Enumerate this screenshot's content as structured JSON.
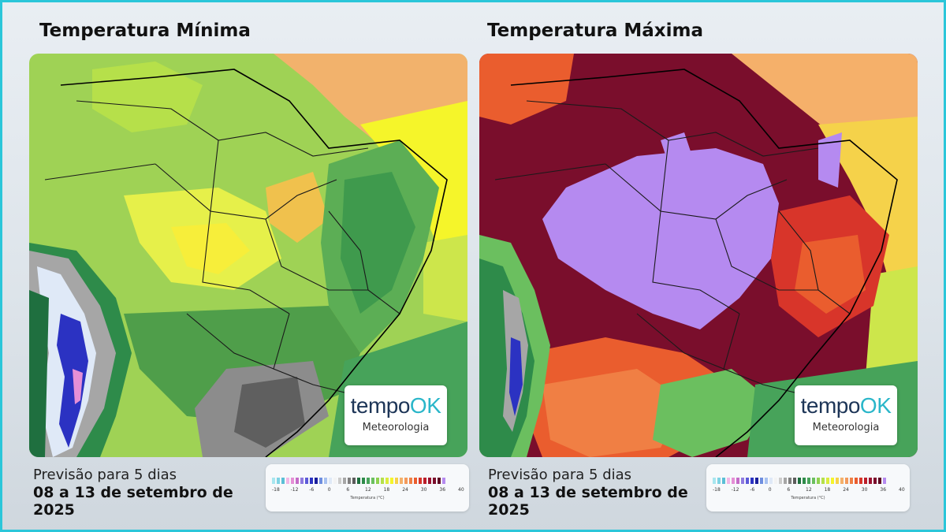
{
  "panels": [
    {
      "title": "Temperatura Mínima",
      "forecast_label": "Previsão para 5 dias",
      "forecast_date": "08 a 13 de setembro de 2025"
    },
    {
      "title": "Temperatura Máxima",
      "forecast_label": "Previsão para 5 dias",
      "forecast_date": "08 a 13 de setembro de 2025"
    }
  ],
  "logo": {
    "brand_main": "tempo",
    "brand_accent": "OK",
    "subtitle": "Meteorologia"
  },
  "legend": {
    "ticks": [
      "-18",
      "-12",
      "-6",
      "0",
      "6",
      "12",
      "18",
      "24",
      "30",
      "36",
      "40"
    ],
    "title": "Temperatura (°C)",
    "colors": [
      "#a8e6ef",
      "#7fd3e3",
      "#5bbfd6",
      "#f2b8e6",
      "#e58fd6",
      "#c46bc7",
      "#8f7ae0",
      "#5c5ad8",
      "#2b32c2",
      "#1a1f9c",
      "#6f8fe0",
      "#a9c2f0",
      "#dfe9f7",
      "#f3f3f3",
      "#cccccc",
      "#a6a6a6",
      "#808080",
      "#5c5c5c",
      "#1f6f3f",
      "#2e8b4a",
      "#47a35a",
      "#6bbf5f",
      "#8fd14f",
      "#b5e04a",
      "#dcec3e",
      "#f5f52a",
      "#f6d24a",
      "#f5b06a",
      "#f39a5c",
      "#f07f44",
      "#ea5d2e",
      "#d8352a",
      "#bb1e2a",
      "#9b1230",
      "#7a0e2c",
      "#5d0b24",
      "#b58af0"
    ]
  }
}
